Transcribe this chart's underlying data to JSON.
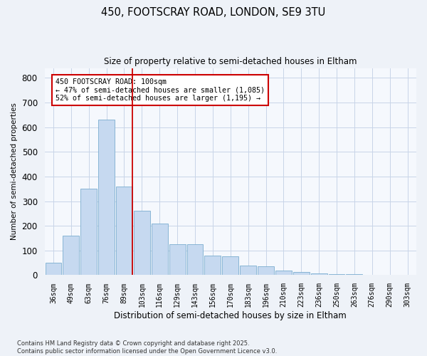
{
  "title1": "450, FOOTSCRAY ROAD, LONDON, SE9 3TU",
  "title2": "Size of property relative to semi-detached houses in Eltham",
  "xlabel": "Distribution of semi-detached houses by size in Eltham",
  "ylabel": "Number of semi-detached properties",
  "categories": [
    "36sqm",
    "49sqm",
    "63sqm",
    "76sqm",
    "89sqm",
    "103sqm",
    "116sqm",
    "129sqm",
    "143sqm",
    "156sqm",
    "170sqm",
    "183sqm",
    "196sqm",
    "210sqm",
    "223sqm",
    "236sqm",
    "250sqm",
    "263sqm",
    "276sqm",
    "290sqm",
    "303sqm"
  ],
  "values": [
    50,
    160,
    350,
    630,
    360,
    260,
    210,
    125,
    125,
    80,
    75,
    40,
    35,
    20,
    13,
    7,
    5,
    3,
    2,
    1,
    1
  ],
  "bar_color": "#c6d9f0",
  "bar_edge_color": "#7aadcf",
  "vline_index": 4,
  "annotation_title": "450 FOOTSCRAY ROAD: 100sqm",
  "annotation_line1": "← 47% of semi-detached houses are smaller (1,085)",
  "annotation_line2": "52% of semi-detached houses are larger (1,195) →",
  "vline_color": "#cc0000",
  "annotation_box_edge_color": "#cc0000",
  "ylim": [
    0,
    840
  ],
  "yticks": [
    0,
    100,
    200,
    300,
    400,
    500,
    600,
    700,
    800
  ],
  "footer1": "Contains HM Land Registry data © Crown copyright and database right 2025.",
  "footer2": "Contains public sector information licensed under the Open Government Licence v3.0.",
  "bg_color": "#eef2f8",
  "plot_bg_color": "#f5f8fd",
  "grid_color": "#c8d4e8"
}
